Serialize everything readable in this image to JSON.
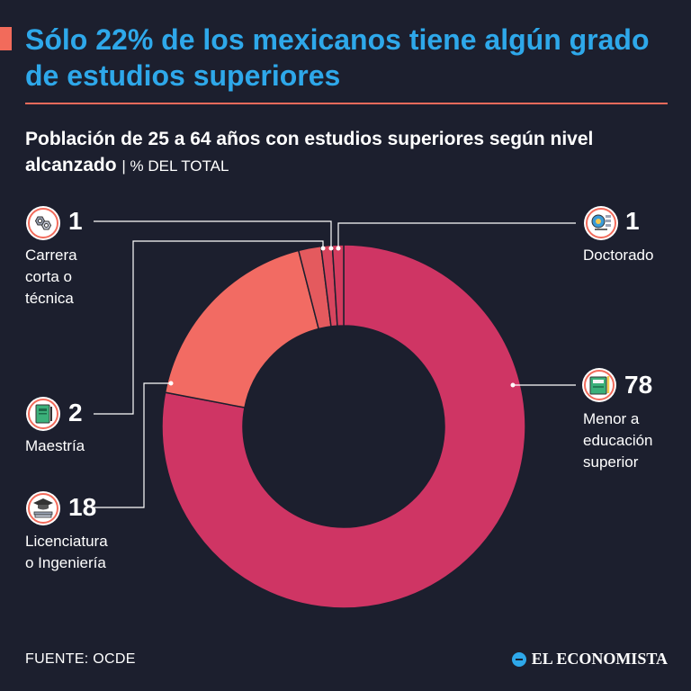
{
  "header": {
    "title": "Sólo 22% de los mexicanos tiene algún grado de estudios superiores",
    "subtitle": "Población de 25 a 64 años con estudios superiores según nivel alcanzado",
    "unit": "| % DEL TOTAL"
  },
  "chart_data": {
    "type": "pie",
    "donut": true,
    "series": [
      {
        "name": "Menor a educación superior",
        "value": 78,
        "color": "#cf3564"
      },
      {
        "name": "Licenciatura o Ingeniería",
        "value": 18,
        "color": "#f26b63"
      },
      {
        "name": "Maestría",
        "value": 2,
        "color": "#e45a5e"
      },
      {
        "name": "Carrera corta o técnica",
        "value": 1,
        "color": "#d8455e"
      },
      {
        "name": "Doctorado",
        "value": 1,
        "color": "#d33c5f"
      }
    ]
  },
  "labels": {
    "carrera": {
      "value": "1",
      "text": [
        "Carrera",
        "corta o",
        "técnica"
      ],
      "icon": "gears-icon"
    },
    "doctorado": {
      "value": "1",
      "text": [
        "Doctorado"
      ],
      "icon": "research-icon"
    },
    "maestria": {
      "value": "2",
      "text": [
        "Maestría"
      ],
      "icon": "thesis-book-icon"
    },
    "licenciatura": {
      "value": "18",
      "text": [
        "Licenciatura",
        "o Ingeniería"
      ],
      "icon": "graduation-cap-icon"
    },
    "menor": {
      "value": "78",
      "text": [
        "Menor a",
        "educación",
        "superior"
      ],
      "icon": "notebook-icon"
    }
  },
  "footer": {
    "source": "FUENTE: OCDE",
    "logo": "EL ECONOMISTA"
  }
}
